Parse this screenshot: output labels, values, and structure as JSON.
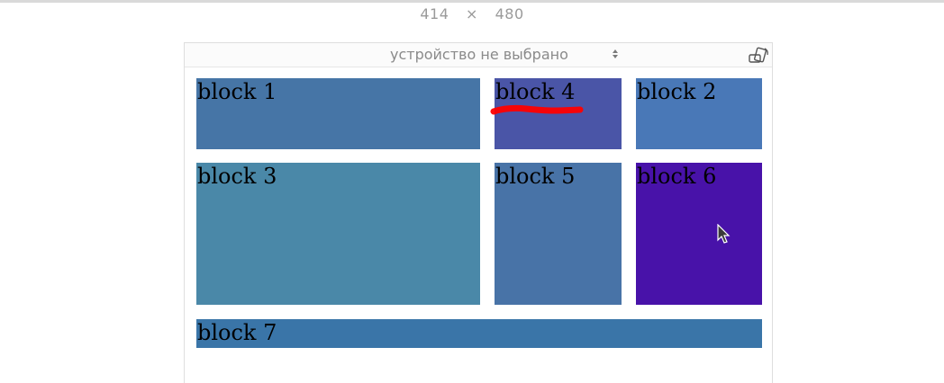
{
  "responsive_bar": {
    "width": "414",
    "separator": "×",
    "height": "480"
  },
  "device_bar": {
    "selected_device": "устройство не выбрано",
    "rotate_icon": "rotate-device-icon",
    "arrows_icon": "select-arrows-icon"
  },
  "blocks": [
    {
      "label": "block 1",
      "color": "#4675a6"
    },
    {
      "label": "block 4",
      "color": "#4a55a7"
    },
    {
      "label": "block 2",
      "color": "#4978b7"
    },
    {
      "label": "block 3",
      "color": "#4a88a8"
    },
    {
      "label": "block 5",
      "color": "#4873a7"
    },
    {
      "label": "block 6",
      "color": "#4812a9"
    },
    {
      "label": "block 7",
      "color": "#3a75a8"
    }
  ],
  "annotation": {
    "color": "#ff0000"
  },
  "cursor_icon": "mouse-pointer-icon"
}
